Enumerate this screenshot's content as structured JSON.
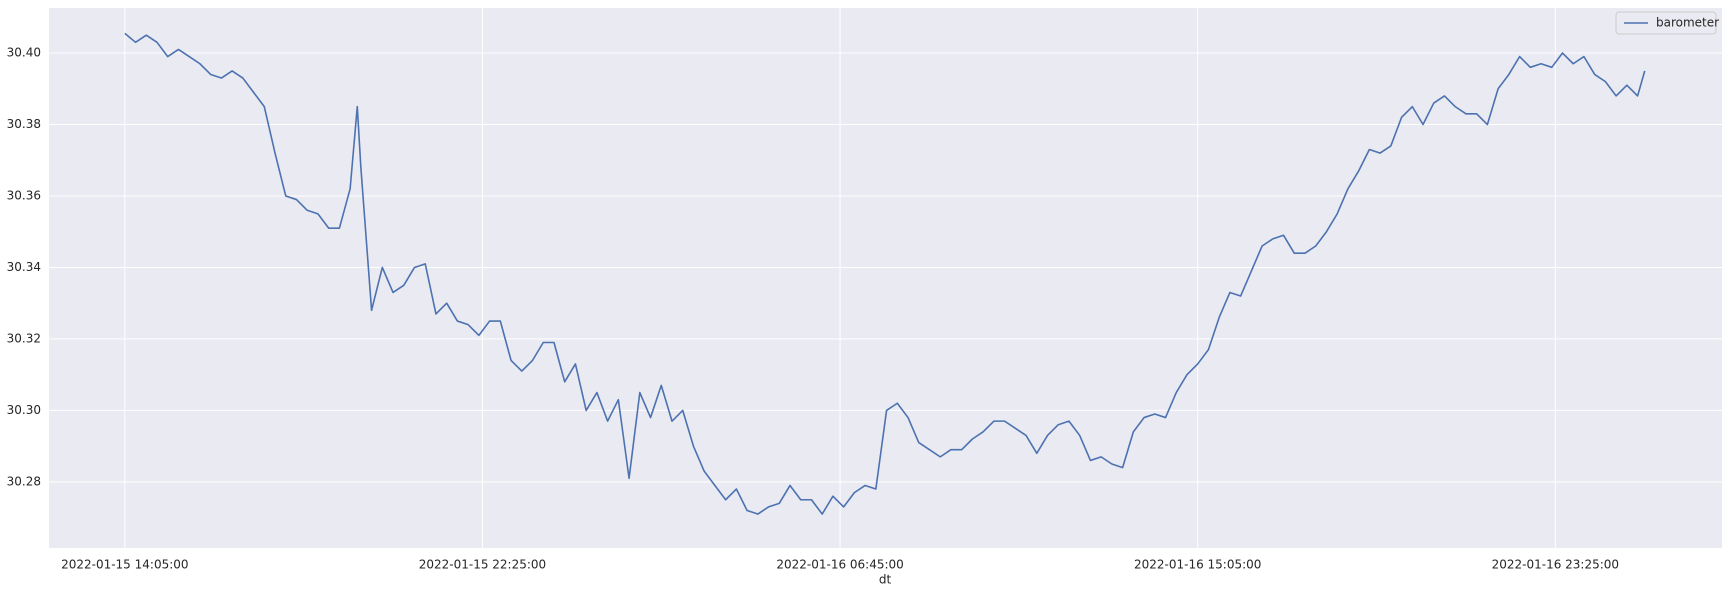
{
  "chart_data": {
    "type": "line",
    "xlabel": "dt",
    "x": [
      "2022-01-15 14:05:00",
      "2022-01-15 14:20:00",
      "2022-01-15 14:35:00",
      "2022-01-15 14:50:00",
      "2022-01-15 15:05:00",
      "2022-01-15 15:20:00",
      "2022-01-15 15:35:00",
      "2022-01-15 15:50:00",
      "2022-01-15 16:05:00",
      "2022-01-15 16:20:00",
      "2022-01-15 16:35:00",
      "2022-01-15 16:50:00",
      "2022-01-15 17:05:00",
      "2022-01-15 17:20:00",
      "2022-01-15 17:35:00",
      "2022-01-15 17:50:00",
      "2022-01-15 18:05:00",
      "2022-01-15 18:20:00",
      "2022-01-15 18:35:00",
      "2022-01-15 18:50:00",
      "2022-01-15 19:05:00",
      "2022-01-15 19:20:00",
      "2022-01-15 19:30:00",
      "2022-01-15 19:35:00",
      "2022-01-15 19:50:00",
      "2022-01-15 20:05:00",
      "2022-01-15 20:20:00",
      "2022-01-15 20:35:00",
      "2022-01-15 20:50:00",
      "2022-01-15 21:05:00",
      "2022-01-15 21:20:00",
      "2022-01-15 21:35:00",
      "2022-01-15 21:50:00",
      "2022-01-15 22:05:00",
      "2022-01-15 22:20:00",
      "2022-01-15 22:35:00",
      "2022-01-15 22:50:00",
      "2022-01-15 23:05:00",
      "2022-01-15 23:20:00",
      "2022-01-15 23:35:00",
      "2022-01-15 23:50:00",
      "2022-01-16 00:05:00",
      "2022-01-16 00:20:00",
      "2022-01-16 00:35:00",
      "2022-01-16 00:50:00",
      "2022-01-16 01:05:00",
      "2022-01-16 01:20:00",
      "2022-01-16 01:35:00",
      "2022-01-16 01:50:00",
      "2022-01-16 02:05:00",
      "2022-01-16 02:20:00",
      "2022-01-16 02:35:00",
      "2022-01-16 02:50:00",
      "2022-01-16 03:05:00",
      "2022-01-16 03:20:00",
      "2022-01-16 03:35:00",
      "2022-01-16 03:50:00",
      "2022-01-16 04:05:00",
      "2022-01-16 04:20:00",
      "2022-01-16 04:35:00",
      "2022-01-16 04:50:00",
      "2022-01-16 05:05:00",
      "2022-01-16 05:20:00",
      "2022-01-16 05:35:00",
      "2022-01-16 05:50:00",
      "2022-01-16 06:05:00",
      "2022-01-16 06:20:00",
      "2022-01-16 06:35:00",
      "2022-01-16 06:50:00",
      "2022-01-16 07:05:00",
      "2022-01-16 07:20:00",
      "2022-01-16 07:35:00",
      "2022-01-16 07:50:00",
      "2022-01-16 08:05:00",
      "2022-01-16 08:20:00",
      "2022-01-16 08:35:00",
      "2022-01-16 08:50:00",
      "2022-01-16 09:05:00",
      "2022-01-16 09:20:00",
      "2022-01-16 09:35:00",
      "2022-01-16 09:50:00",
      "2022-01-16 10:05:00",
      "2022-01-16 10:20:00",
      "2022-01-16 10:35:00",
      "2022-01-16 10:50:00",
      "2022-01-16 11:05:00",
      "2022-01-16 11:20:00",
      "2022-01-16 11:35:00",
      "2022-01-16 11:50:00",
      "2022-01-16 12:05:00",
      "2022-01-16 12:20:00",
      "2022-01-16 12:35:00",
      "2022-01-16 12:50:00",
      "2022-01-16 13:05:00",
      "2022-01-16 13:20:00",
      "2022-01-16 13:35:00",
      "2022-01-16 13:50:00",
      "2022-01-16 14:05:00",
      "2022-01-16 14:20:00",
      "2022-01-16 14:35:00",
      "2022-01-16 14:50:00",
      "2022-01-16 15:05:00",
      "2022-01-16 15:20:00",
      "2022-01-16 15:35:00",
      "2022-01-16 15:50:00",
      "2022-01-16 16:05:00",
      "2022-01-16 16:20:00",
      "2022-01-16 16:35:00",
      "2022-01-16 16:50:00",
      "2022-01-16 17:05:00",
      "2022-01-16 17:20:00",
      "2022-01-16 17:35:00",
      "2022-01-16 17:50:00",
      "2022-01-16 18:05:00",
      "2022-01-16 18:20:00",
      "2022-01-16 18:35:00",
      "2022-01-16 18:50:00",
      "2022-01-16 19:05:00",
      "2022-01-16 19:20:00",
      "2022-01-16 19:35:00",
      "2022-01-16 19:50:00",
      "2022-01-16 20:05:00",
      "2022-01-16 20:20:00",
      "2022-01-16 20:35:00",
      "2022-01-16 20:50:00",
      "2022-01-16 21:05:00",
      "2022-01-16 21:20:00",
      "2022-01-16 21:35:00",
      "2022-01-16 21:50:00",
      "2022-01-16 22:05:00",
      "2022-01-16 22:20:00",
      "2022-01-16 22:35:00",
      "2022-01-16 22:50:00",
      "2022-01-16 23:05:00",
      "2022-01-16 23:20:00",
      "2022-01-16 23:35:00",
      "2022-01-16 23:50:00",
      "2022-01-17 00:05:00",
      "2022-01-17 00:20:00",
      "2022-01-17 00:35:00",
      "2022-01-17 00:50:00",
      "2022-01-17 01:05:00",
      "2022-01-17 01:20:00",
      "2022-01-17 01:30:00"
    ],
    "series": [
      {
        "name": "barometer",
        "color": "#4c72b0",
        "values": [
          30.4055,
          30.403,
          30.405,
          30.403,
          30.399,
          30.401,
          30.399,
          30.397,
          30.394,
          30.393,
          30.395,
          30.393,
          30.389,
          30.385,
          30.372,
          30.36,
          30.359,
          30.356,
          30.355,
          30.351,
          30.351,
          30.362,
          30.385,
          30.368,
          30.328,
          30.34,
          30.333,
          30.335,
          30.34,
          30.341,
          30.327,
          30.33,
          30.325,
          30.324,
          30.321,
          30.325,
          30.325,
          30.314,
          30.311,
          30.314,
          30.319,
          30.319,
          30.308,
          30.313,
          30.3,
          30.305,
          30.297,
          30.303,
          30.281,
          30.305,
          30.298,
          30.307,
          30.297,
          30.3,
          30.29,
          30.283,
          30.279,
          30.275,
          30.278,
          30.272,
          30.271,
          30.273,
          30.274,
          30.279,
          30.275,
          30.275,
          30.271,
          30.276,
          30.273,
          30.277,
          30.279,
          30.278,
          30.3,
          30.302,
          30.298,
          30.291,
          30.289,
          30.287,
          30.289,
          30.289,
          30.292,
          30.294,
          30.297,
          30.297,
          30.295,
          30.293,
          30.288,
          30.293,
          30.296,
          30.297,
          30.293,
          30.286,
          30.287,
          30.285,
          30.284,
          30.294,
          30.298,
          30.299,
          30.298,
          30.305,
          30.31,
          30.313,
          30.317,
          30.326,
          30.333,
          30.332,
          30.339,
          30.346,
          30.348,
          30.349,
          30.344,
          30.344,
          30.346,
          30.35,
          30.355,
          30.362,
          30.367,
          30.373,
          30.372,
          30.374,
          30.382,
          30.385,
          30.38,
          30.386,
          30.388,
          30.385,
          30.383,
          30.383,
          30.38,
          30.39,
          30.394,
          30.399,
          30.396,
          30.397,
          30.396,
          30.4,
          30.397,
          30.399,
          30.394,
          30.392,
          30.388,
          30.391,
          30.388,
          30.395
        ]
      }
    ],
    "xlim": [
      "2022-01-15 12:19:00",
      "2022-01-17 03:18:00"
    ],
    "xticks": [
      "2022-01-15 14:05:00",
      "2022-01-15 22:25:00",
      "2022-01-16 06:45:00",
      "2022-01-16 15:05:00",
      "2022-01-16 23:25:00"
    ],
    "ylim": [
      30.2615,
      30.4126
    ],
    "yticks": [
      30.28,
      {
        "value": 30.3,
        "label": "30.30"
      },
      30.32,
      30.34,
      30.36,
      30.38,
      {
        "value": 30.4,
        "label": "30.40"
      }
    ],
    "grid": true,
    "legend": "upper right"
  }
}
